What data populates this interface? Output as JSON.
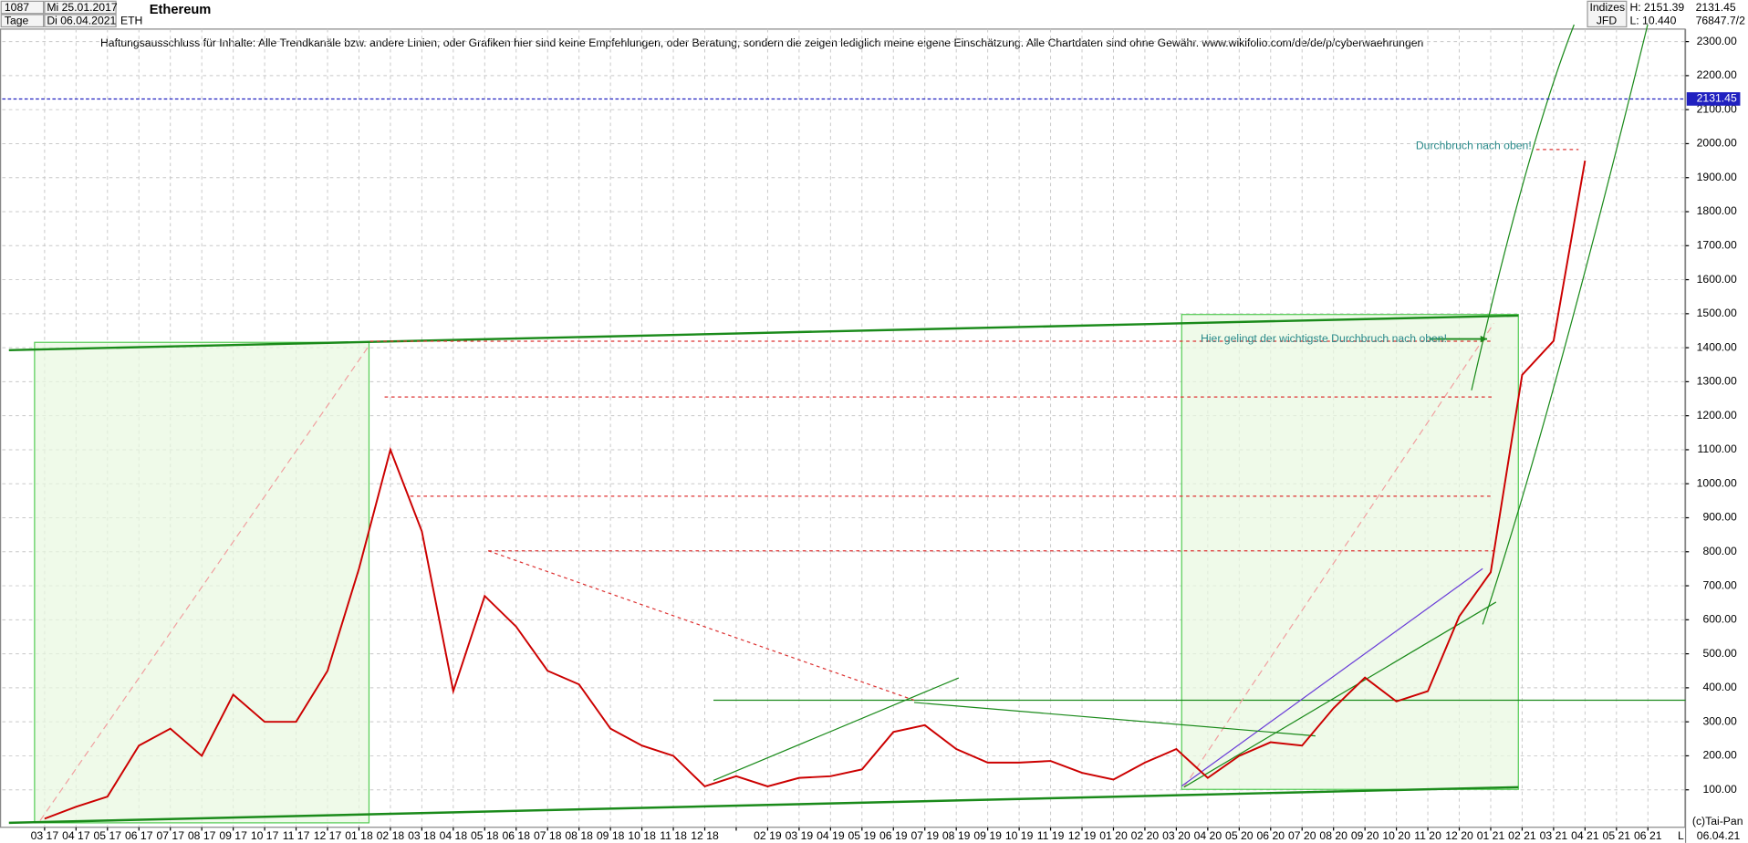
{
  "header": {
    "count": "1087",
    "start_day": "Mi 25.01.2017",
    "period": "Tage",
    "end_day": "Di 06.04.2021",
    "symbol": "ETH",
    "group": "Indizes",
    "source": "JFD",
    "high": "H: 2151.39",
    "low": "L: 10.440",
    "volume": "76847.7/2",
    "copyright": "(c)Tai-Pan",
    "footer_date": "06.04.21",
    "footer_mode": "L"
  },
  "chart_data": {
    "type": "line",
    "title": "Ethereum",
    "subtitle": "Haftungsausschluss für Inhalte: Alle Trendkanäle bzw. andere Linien, oder Grafiken hier sind keine Empfehlungen, oder Beratung, sondern die zeigen lediglich meine eigene Einschätzung. Alle Chartdaten sind ohne Gewähr.  www.wikifolio.com/de/de/p/cyberwaehrungen",
    "annotations": [
      "Durchbruch nach oben!",
      "Hier gelingt der wichtigste Durchbruch nach oben!"
    ],
    "categories": [
      "03 17",
      "04 17",
      "05 17",
      "06 17",
      "07 17",
      "08 17",
      "09 17",
      "10 17",
      "11 17",
      "12 17",
      "01 18",
      "02 18",
      "03 18",
      "04 18",
      "05 18",
      "06 18",
      "07 18",
      "08 18",
      "09 18",
      "10 18",
      "11 18",
      "12 18",
      null,
      "02 19",
      "03 19",
      "04 19",
      "05 19",
      "06 19",
      "07 19",
      "08 19",
      "09 19",
      "10 19",
      "11 19",
      "12 19",
      "01 20",
      "02 20",
      "03 20",
      "04 20",
      "05 20",
      "06 20",
      "07 20",
      "08 20",
      "09 20",
      "10 20",
      "11 20",
      "12 20",
      "01 21",
      "02 21",
      "03 21",
      "04 21",
      "05 21",
      "06 21"
    ],
    "series": [
      {
        "name": "ETH",
        "color": "#cc0000",
        "values": [
          15,
          50,
          80,
          230,
          280,
          200,
          380,
          300,
          300,
          450,
          750,
          1100,
          860,
          390,
          670,
          580,
          450,
          410,
          280,
          230,
          200,
          110,
          140,
          110,
          135,
          140,
          160,
          270,
          290,
          220,
          180,
          180,
          185,
          150,
          130,
          180,
          220,
          135,
          200,
          240,
          230,
          340,
          430,
          360,
          390,
          610,
          740,
          1320,
          1420,
          1950,
          null,
          null
        ]
      }
    ],
    "last_price": {
      "value": 2131.45,
      "label": "2131.45"
    },
    "ylim": [
      -20,
      2350
    ],
    "yticks": [
      {
        "value": 100,
        "label": "100.00"
      },
      {
        "value": 200,
        "label": "200.00"
      },
      {
        "value": 300,
        "label": "300.00"
      },
      {
        "value": 400,
        "label": "400.00"
      },
      {
        "value": 500,
        "label": "500.00"
      },
      {
        "value": 600,
        "label": "600.00"
      },
      {
        "value": 700,
        "label": "700.00"
      },
      {
        "value": 800,
        "label": "800.00"
      },
      {
        "value": 900,
        "label": "900.00"
      },
      {
        "value": 1000,
        "label": "1000.00"
      },
      {
        "value": 1100,
        "label": "1100.00"
      },
      {
        "value": 1200,
        "label": "1200.00"
      },
      {
        "value": 1300,
        "label": "1300.00"
      },
      {
        "value": 1400,
        "label": "1400.00"
      },
      {
        "value": 1500,
        "label": "1500.00"
      },
      {
        "value": 1600,
        "label": "1600.00"
      },
      {
        "value": 1700,
        "label": "1700.00"
      },
      {
        "value": 1800,
        "label": "1800.00"
      },
      {
        "value": 1900,
        "label": "1900.00"
      },
      {
        "value": 2000,
        "label": "2000.00"
      },
      {
        "value": 2100,
        "label": "2100.00"
      },
      {
        "value": 2200,
        "label": "2200.00"
      },
      {
        "value": 2300,
        "label": "2300.00"
      }
    ],
    "grid": true
  }
}
